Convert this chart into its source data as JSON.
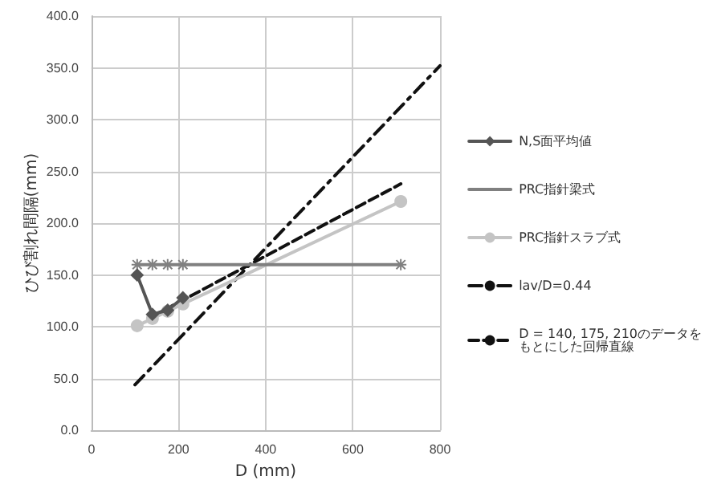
{
  "chart_data": {
    "type": "line",
    "xlabel": "D (mm)",
    "ylabel": "ひび割れ間隔(mm)",
    "xlim": [
      0,
      800
    ],
    "xticks": [
      0,
      200,
      400,
      600,
      800
    ],
    "ylim": [
      0,
      400
    ],
    "yticks": [
      {
        "value": 0,
        "label": "0.0"
      },
      {
        "value": 50,
        "label": "50.0"
      },
      {
        "value": 100,
        "label": "100.0"
      },
      {
        "value": 150,
        "label": "150.0"
      },
      {
        "value": 200,
        "label": "200.0"
      },
      {
        "value": 250,
        "label": "250.0"
      },
      {
        "value": 300,
        "label": "300.0"
      },
      {
        "value": 350,
        "label": "350.0"
      },
      {
        "value": 400,
        "label": "400.0"
      }
    ],
    "grid": true,
    "legend": "right",
    "series": [
      {
        "name": "N,S面平均値",
        "color": "#555555",
        "marker": "diamond",
        "line_style": "solid",
        "x": [
          105,
          140,
          175,
          210
        ],
        "values": [
          150,
          112,
          116,
          128
        ]
      },
      {
        "name": "PRC指針梁式",
        "color": "#808080",
        "marker": "cross",
        "line_style": "solid",
        "x": [
          105,
          140,
          175,
          210,
          710
        ],
        "values": [
          160,
          160,
          160,
          160,
          160
        ]
      },
      {
        "name": "PRC指針スラブ式",
        "color": "#c4c4c4",
        "marker": "circle",
        "line_style": "solid",
        "x": [
          105,
          140,
          175,
          210,
          710
        ],
        "values": [
          101,
          108,
          115,
          122,
          221
        ]
      },
      {
        "name": "lav/D=0.44",
        "color": "#111111",
        "marker": "none",
        "line_style": "dashdot",
        "x": [
          100,
          800
        ],
        "values": [
          44,
          352
        ]
      },
      {
        "name": "D = 140, 175, 210のデータをもとにした回帰直線",
        "color": "#111111",
        "marker": "none",
        "line_style": "dashed",
        "x": [
          140,
          710
        ],
        "values": [
          110,
          238
        ]
      }
    ]
  }
}
